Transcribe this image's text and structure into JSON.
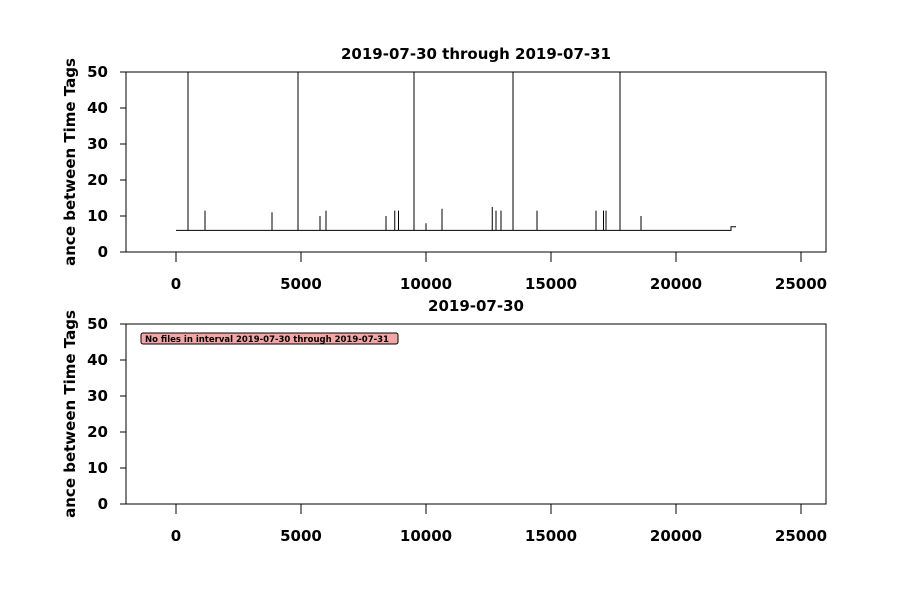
{
  "chart_data": [
    {
      "type": "line",
      "title": "2019-07-30 through 2019-07-31",
      "y_label": "ance between Time Tags",
      "color": "#000000",
      "x": [
        0,
        480,
        480,
        480,
        1160,
        1160,
        1160,
        3840,
        3840,
        3840,
        4880,
        4880,
        4880,
        5760,
        5760,
        5760,
        6000,
        6000,
        6000,
        8400,
        8400,
        8400,
        8750,
        8750,
        8750,
        8900,
        8900,
        8900,
        9520,
        9520,
        9520,
        10000,
        10000,
        10000,
        10640,
        10640,
        10640,
        12650,
        12650,
        12650,
        12800,
        12800,
        12800,
        13000,
        13000,
        13000,
        13480,
        13480,
        13480,
        14440,
        14440,
        14440,
        16800,
        16800,
        16800,
        17100,
        17100,
        17100,
        17200,
        17200,
        17200,
        17760,
        17760,
        17760,
        18600,
        18600,
        18600,
        22200,
        22200,
        22400
      ],
      "values": [
        6,
        6,
        50,
        6,
        6,
        11.5,
        6,
        6,
        11,
        6,
        6,
        50,
        6,
        6,
        10,
        6,
        6,
        11.5,
        6,
        6,
        10,
        6,
        6,
        11.5,
        6,
        6,
        11.5,
        6,
        6,
        50,
        6,
        6,
        8,
        6,
        6,
        12,
        6,
        6,
        12.5,
        6,
        6,
        11.5,
        6,
        6,
        11.5,
        6,
        6,
        50,
        6,
        6,
        11.5,
        6,
        6,
        11.5,
        6,
        6,
        11.5,
        6,
        6,
        11.5,
        6,
        6,
        50,
        6,
        6,
        10,
        6,
        6,
        7,
        7
      ],
      "xlim": [
        -2000,
        26000
      ],
      "xticks": [
        0,
        5000,
        10000,
        15000,
        20000,
        25000
      ],
      "ylim": [
        0,
        50
      ],
      "yticks": [
        0,
        10,
        20,
        30,
        40,
        50
      ]
    },
    {
      "type": "line",
      "title": "2019-07-30",
      "y_label": "ance between Time Tags",
      "annotation": "No files in interval 2019-07-30 through 2019-07-31",
      "xlim": [
        -2000,
        26000
      ],
      "xticks": [
        0,
        5000,
        10000,
        15000,
        20000,
        25000
      ],
      "ylim": [
        0,
        50
      ],
      "yticks": [
        0,
        10,
        20,
        30,
        40,
        50
      ]
    }
  ]
}
